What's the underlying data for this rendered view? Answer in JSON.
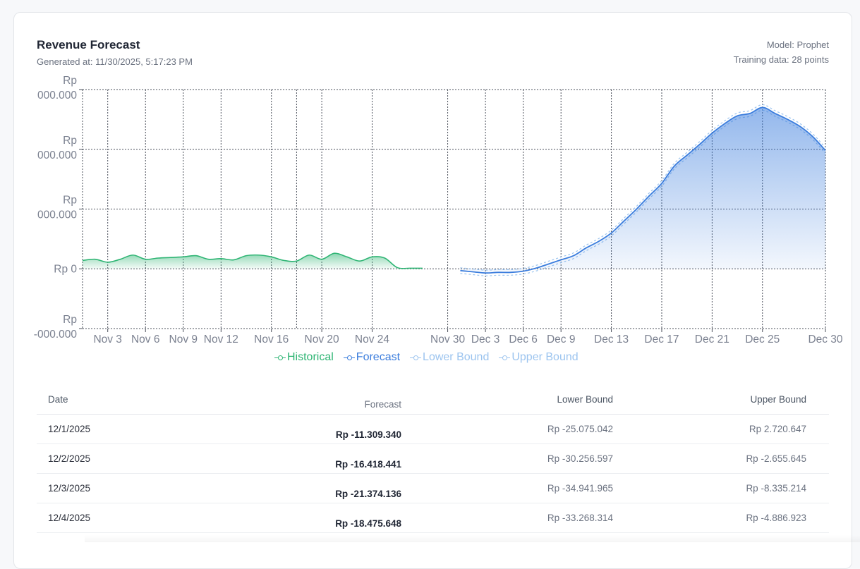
{
  "header": {
    "title": "Revenue Forecast",
    "generated": "Generated at: 11/30/2025, 5:17:23 PM",
    "model": "Model: Prophet",
    "training": "Training data: 28 points"
  },
  "colors": {
    "historical": "#2fb574",
    "forecast": "#3b7ddd",
    "bound": "#9cc4ef",
    "grid": "#4a4f5a",
    "tick": "#7b8190"
  },
  "legend": [
    "Historical",
    "Forecast",
    "Lower Bound",
    "Upper Bound"
  ],
  "chart_data": {
    "type": "area",
    "x_ticks": [
      "Nov 3",
      "Nov 6",
      "Nov 9",
      "Nov 12",
      "Nov 16",
      "Nov 20",
      "Nov 24",
      "Nov 30",
      "Dec 3",
      "Dec 6",
      "Dec 9",
      "Dec 13",
      "Dec 17",
      "Dec 21",
      "Dec 25",
      "Dec 30"
    ],
    "y_ticks": [
      "Rp -...000.000",
      "Rp 0",
      "Rp ...000.000",
      "Rp ...000.000",
      "Rp ...000.000"
    ],
    "y_units_note_hidden": null,
    "ylim": [
      -100,
      300
    ],
    "grid": true,
    "legend_position": "bottom",
    "series": [
      {
        "name": "Historical",
        "x": [
          "2025-11-01",
          "2025-11-02",
          "2025-11-03",
          "2025-11-04",
          "2025-11-05",
          "2025-11-06",
          "2025-11-07",
          "2025-11-08",
          "2025-11-09",
          "2025-11-10",
          "2025-11-11",
          "2025-11-12",
          "2025-11-13",
          "2025-11-14",
          "2025-11-15",
          "2025-11-16",
          "2025-11-17",
          "2025-11-18",
          "2025-11-19",
          "2025-11-20",
          "2025-11-21",
          "2025-11-22",
          "2025-11-23",
          "2025-11-24",
          "2025-11-25",
          "2025-11-26",
          "2025-11-27",
          "2025-11-28"
        ],
        "values": [
          14,
          16,
          11,
          16,
          23,
          16,
          18,
          19,
          20,
          22,
          16,
          17,
          15,
          22,
          23,
          20,
          14,
          13,
          23,
          16,
          26,
          20,
          13,
          20,
          18,
          2,
          1,
          1
        ]
      },
      {
        "name": "Forecast",
        "x": [
          "2025-12-01",
          "2025-12-02",
          "2025-12-03",
          "2025-12-04",
          "2025-12-05",
          "2025-12-06",
          "2025-12-07",
          "2025-12-08",
          "2025-12-09",
          "2025-12-10",
          "2025-12-11",
          "2025-12-12",
          "2025-12-13",
          "2025-12-14",
          "2025-12-15",
          "2025-12-16",
          "2025-12-17",
          "2025-12-18",
          "2025-12-19",
          "2025-12-20",
          "2025-12-21",
          "2025-12-22",
          "2025-12-23",
          "2025-12-24",
          "2025-12-25",
          "2025-12-26",
          "2025-12-27",
          "2025-12-28",
          "2025-12-29",
          "2025-12-30"
        ],
        "values": [
          -3,
          -5,
          -7,
          -6,
          -6,
          -4,
          1,
          8,
          15,
          22,
          35,
          46,
          60,
          80,
          100,
          122,
          143,
          172,
          190,
          208,
          227,
          243,
          256,
          260,
          270,
          260,
          250,
          238,
          221,
          198
        ]
      },
      {
        "name": "Lower Bound",
        "x": [
          "2025-12-01",
          "2025-12-30"
        ],
        "values": [
          -7,
          194
        ]
      },
      {
        "name": "Upper Bound",
        "x": [
          "2025-12-01",
          "2025-12-30"
        ],
        "values": [
          1,
          202
        ]
      }
    ]
  },
  "table": {
    "headers": {
      "date": "Date",
      "forecast": "Forecast",
      "lower": "Lower Bound",
      "upper": "Upper Bound"
    },
    "rows": [
      {
        "date": "12/1/2025",
        "forecast": "Rp -11.309.340",
        "lower": "Rp -25.075.042",
        "upper": "Rp 2.720.647"
      },
      {
        "date": "12/2/2025",
        "forecast": "Rp -16.418.441",
        "lower": "Rp -30.256.597",
        "upper": "Rp -2.655.645"
      },
      {
        "date": "12/3/2025",
        "forecast": "Rp -21.374.136",
        "lower": "Rp -34.941.965",
        "upper": "Rp -8.335.214"
      },
      {
        "date": "12/4/2025",
        "forecast": "Rp -18.475.648",
        "lower": "Rp -33.268.314",
        "upper": "Rp -4.886.923"
      }
    ]
  }
}
